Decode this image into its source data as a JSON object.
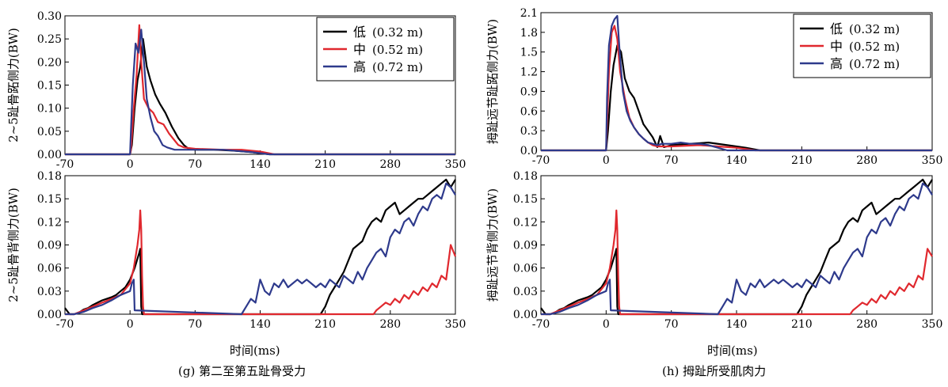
{
  "figure": {
    "xlabel": "时间(ms)",
    "captions": [
      "(g) 第二至第五趾骨受力",
      "(h) 拇趾所受肌肉力"
    ]
  },
  "legend": {
    "entries": [
      {
        "label": "低",
        "value": "(0.32 m)",
        "color": "#000000"
      },
      {
        "label": "中",
        "value": "(0.52 m)",
        "color": "#e0282e"
      },
      {
        "label": "高",
        "value": "(0.72 m)",
        "color": "#2e3a8c"
      }
    ]
  },
  "chart_data": [
    {
      "type": "line",
      "ylabel": "2~5趾骨跖侧力(BW)",
      "xlim": [
        -70,
        350
      ],
      "ylim": [
        0,
        0.3
      ],
      "xticks": [
        "-70",
        "0",
        "70",
        "140",
        "210",
        "280",
        "350"
      ],
      "yticks": [
        "0.00",
        "0.05",
        "0.10",
        "0.15",
        "0.20",
        "0.25",
        "0.30"
      ],
      "legend": true,
      "series": [
        {
          "name": "低 (0.32 m)",
          "color": "#000000",
          "x": [
            -70,
            0,
            2,
            5,
            8,
            11,
            14,
            18,
            22,
            27,
            32,
            38,
            45,
            52,
            58,
            63,
            70,
            90,
            110,
            130,
            150,
            200,
            350
          ],
          "y": [
            0,
            0,
            0.02,
            0.1,
            0.16,
            0.19,
            0.25,
            0.19,
            0.16,
            0.13,
            0.11,
            0.09,
            0.06,
            0.035,
            0.02,
            0.012,
            0.01,
            0.01,
            0.008,
            0.005,
            0,
            0,
            0
          ]
        },
        {
          "name": "中 (0.52 m)",
          "color": "#e0282e",
          "x": [
            -70,
            0,
            1,
            4,
            7,
            10,
            12,
            15,
            20,
            25,
            30,
            36,
            42,
            48,
            52,
            58,
            70,
            100,
            120,
            140,
            155,
            350
          ],
          "y": [
            0,
            0,
            0.01,
            0.1,
            0.17,
            0.28,
            0.2,
            0.12,
            0.1,
            0.09,
            0.07,
            0.065,
            0.045,
            0.03,
            0.02,
            0.015,
            0.012,
            0.01,
            0.01,
            0.006,
            0,
            0
          ]
        },
        {
          "name": "高 (0.72 m)",
          "color": "#2e3a8c",
          "x": [
            -70,
            0,
            1,
            3,
            6,
            9,
            12,
            15,
            18,
            22,
            26,
            30,
            35,
            40,
            48,
            55,
            60,
            70,
            100,
            130,
            150,
            350
          ],
          "y": [
            0,
            0,
            0.05,
            0.15,
            0.24,
            0.22,
            0.27,
            0.2,
            0.12,
            0.08,
            0.05,
            0.04,
            0.02,
            0.015,
            0.01,
            0.01,
            0.01,
            0.01,
            0.01,
            0.005,
            0,
            0
          ]
        }
      ]
    },
    {
      "type": "line",
      "ylabel": "拇趾远节趾跖侧力(BW)",
      "xlim": [
        -70,
        350
      ],
      "ylim": [
        0,
        2.1
      ],
      "xticks": [
        "-70",
        "0",
        "70",
        "140",
        "210",
        "280",
        "350"
      ],
      "yticks": [
        "0.0",
        "0.3",
        "0.6",
        "0.9",
        "1.2",
        "1.5",
        "1.8",
        "2.1"
      ],
      "legend": true,
      "series": [
        {
          "name": "低 (0.32 m)",
          "color": "#000000",
          "x": [
            -70,
            0,
            2,
            5,
            8,
            12,
            16,
            20,
            25,
            30,
            35,
            40,
            45,
            50,
            55,
            58,
            62,
            70,
            90,
            110,
            130,
            150,
            165,
            350
          ],
          "y": [
            0,
            0,
            0.3,
            0.9,
            1.3,
            1.6,
            1.5,
            1.1,
            0.9,
            0.8,
            0.6,
            0.4,
            0.3,
            0.2,
            0.05,
            0.22,
            0.05,
            0.08,
            0.1,
            0.12,
            0.08,
            0.04,
            0,
            0
          ]
        },
        {
          "name": "中 (0.52 m)",
          "color": "#e0282e",
          "x": [
            -70,
            0,
            1,
            3,
            6,
            9,
            12,
            15,
            20,
            25,
            30,
            35,
            40,
            45,
            50,
            55,
            70,
            100,
            120,
            140,
            160,
            350
          ],
          "y": [
            0,
            0,
            0.4,
            1.2,
            1.8,
            1.9,
            1.7,
            1.2,
            0.8,
            0.5,
            0.35,
            0.25,
            0.18,
            0.12,
            0.08,
            0.06,
            0.06,
            0.08,
            0.06,
            0.04,
            0,
            0
          ]
        },
        {
          "name": "高 (0.72 m)",
          "color": "#2e3a8c",
          "x": [
            -70,
            0,
            1,
            3,
            6,
            9,
            12,
            15,
            18,
            22,
            26,
            30,
            35,
            40,
            45,
            50,
            55,
            60,
            70,
            80,
            90,
            100,
            110,
            120,
            130,
            350
          ],
          "y": [
            0,
            0,
            0.8,
            1.6,
            1.9,
            2.0,
            2.05,
            1.4,
            0.9,
            0.6,
            0.45,
            0.35,
            0.25,
            0.18,
            0.12,
            0.1,
            0.08,
            0.1,
            0.1,
            0.12,
            0.1,
            0.1,
            0.08,
            0.04,
            0,
            0
          ]
        }
      ]
    },
    {
      "type": "line",
      "ylabel": "2~5趾骨背侧力(BW)",
      "xlim": [
        -70,
        350
      ],
      "ylim": [
        0,
        0.18
      ],
      "xticks": [
        "-70",
        "0",
        "70",
        "140",
        "210",
        "280",
        "350"
      ],
      "yticks": [
        "0.00",
        "0.03",
        "0.06",
        "0.09",
        "0.12",
        "0.15",
        "0.18"
      ],
      "legend": false,
      "series": [
        {
          "name": "低 (0.32 m)",
          "color": "#000000",
          "x": [
            -70,
            -65,
            -60,
            -55,
            -50,
            -45,
            -40,
            -35,
            -30,
            -25,
            -20,
            -15,
            -10,
            -5,
            0,
            5,
            10,
            11,
            12,
            13,
            205,
            210,
            215,
            220,
            225,
            230,
            235,
            240,
            245,
            250,
            255,
            260,
            265,
            270,
            275,
            280,
            285,
            290,
            295,
            300,
            305,
            310,
            315,
            320,
            325,
            330,
            335,
            340,
            345,
            350
          ],
          "y": [
            0.008,
            0.0,
            0.0,
            0.002,
            0.006,
            0.008,
            0.012,
            0.015,
            0.018,
            0.02,
            0.022,
            0.025,
            0.03,
            0.035,
            0.045,
            0.06,
            0.08,
            0.085,
            0.01,
            0,
            0,
            0.01,
            0.025,
            0.035,
            0.045,
            0.055,
            0.07,
            0.085,
            0.09,
            0.095,
            0.11,
            0.12,
            0.125,
            0.12,
            0.135,
            0.14,
            0.145,
            0.13,
            0.135,
            0.14,
            0.145,
            0.15,
            0.15,
            0.155,
            0.16,
            0.165,
            0.17,
            0.175,
            0.165,
            0.175
          ]
        },
        {
          "name": "中 (0.52 m)",
          "color": "#e0282e",
          "x": [
            -70,
            -60,
            -50,
            -40,
            -30,
            -20,
            -10,
            0,
            4,
            8,
            10,
            11,
            12,
            13,
            14,
            15,
            262,
            265,
            270,
            275,
            280,
            285,
            290,
            295,
            300,
            305,
            310,
            315,
            320,
            325,
            330,
            335,
            340,
            345,
            350
          ],
          "y": [
            0.0,
            0.0,
            0.005,
            0.01,
            0.015,
            0.02,
            0.025,
            0.04,
            0.06,
            0.09,
            0.11,
            0.135,
            0.11,
            0.05,
            0.01,
            0,
            0,
            0.005,
            0.01,
            0.015,
            0.012,
            0.02,
            0.015,
            0.025,
            0.02,
            0.03,
            0.025,
            0.035,
            0.03,
            0.04,
            0.035,
            0.05,
            0.045,
            0.09,
            0.075
          ]
        },
        {
          "name": "高 (0.72 m)",
          "color": "#2e3a8c",
          "x": [
            -70,
            -60,
            -50,
            -40,
            -30,
            -20,
            -10,
            0,
            2,
            4,
            5,
            120,
            125,
            130,
            135,
            140,
            145,
            150,
            155,
            160,
            165,
            170,
            175,
            180,
            185,
            190,
            195,
            200,
            205,
            210,
            215,
            220,
            225,
            230,
            235,
            240,
            245,
            250,
            255,
            260,
            265,
            270,
            275,
            280,
            285,
            290,
            295,
            300,
            305,
            310,
            315,
            320,
            325,
            330,
            335,
            340,
            345,
            350
          ],
          "y": [
            0.0,
            0.0,
            0.003,
            0.008,
            0.012,
            0.018,
            0.025,
            0.03,
            0.04,
            0.045,
            0.005,
            0,
            0.01,
            0.02,
            0.015,
            0.045,
            0.03,
            0.025,
            0.04,
            0.035,
            0.045,
            0.035,
            0.04,
            0.045,
            0.04,
            0.045,
            0.04,
            0.035,
            0.04,
            0.035,
            0.045,
            0.04,
            0.035,
            0.05,
            0.045,
            0.04,
            0.055,
            0.045,
            0.06,
            0.07,
            0.08,
            0.085,
            0.075,
            0.1,
            0.11,
            0.105,
            0.12,
            0.125,
            0.115,
            0.13,
            0.14,
            0.135,
            0.15,
            0.155,
            0.15,
            0.17,
            0.165,
            0.155
          ]
        }
      ]
    },
    {
      "type": "line",
      "ylabel": "拇趾远节背侧力(BW)",
      "xlim": [
        -70,
        350
      ],
      "ylim": [
        0,
        0.18
      ],
      "xticks": [
        "-70",
        "0",
        "70",
        "140",
        "210",
        "280",
        "350"
      ],
      "yticks": [
        "0.00",
        "0.03",
        "0.06",
        "0.09",
        "0.12",
        "0.15",
        "0.18"
      ],
      "legend": false,
      "series": [
        {
          "name": "低 (0.32 m)",
          "color": "#000000",
          "x": [
            -70,
            -65,
            -60,
            -55,
            -50,
            -45,
            -40,
            -35,
            -30,
            -25,
            -20,
            -15,
            -10,
            -5,
            0,
            5,
            10,
            11,
            12,
            13,
            205,
            210,
            215,
            220,
            225,
            230,
            235,
            240,
            245,
            250,
            255,
            260,
            265,
            270,
            275,
            280,
            285,
            290,
            295,
            300,
            305,
            310,
            315,
            320,
            325,
            330,
            335,
            340,
            345,
            350
          ],
          "y": [
            0.008,
            0.0,
            0.0,
            0.002,
            0.006,
            0.008,
            0.012,
            0.015,
            0.018,
            0.02,
            0.022,
            0.025,
            0.03,
            0.035,
            0.045,
            0.06,
            0.08,
            0.085,
            0.01,
            0,
            0,
            0.01,
            0.025,
            0.035,
            0.045,
            0.055,
            0.07,
            0.085,
            0.09,
            0.095,
            0.11,
            0.12,
            0.125,
            0.12,
            0.135,
            0.14,
            0.145,
            0.13,
            0.135,
            0.14,
            0.145,
            0.15,
            0.15,
            0.155,
            0.16,
            0.165,
            0.17,
            0.175,
            0.165,
            0.175
          ]
        },
        {
          "name": "中 (0.52 m)",
          "color": "#e0282e",
          "x": [
            -70,
            -60,
            -50,
            -40,
            -30,
            -20,
            -10,
            0,
            4,
            8,
            10,
            11,
            12,
            13,
            14,
            15,
            262,
            265,
            270,
            275,
            280,
            285,
            290,
            295,
            300,
            305,
            310,
            315,
            320,
            325,
            330,
            335,
            340,
            345,
            350
          ],
          "y": [
            0.0,
            0.0,
            0.005,
            0.01,
            0.015,
            0.02,
            0.025,
            0.04,
            0.06,
            0.09,
            0.11,
            0.135,
            0.11,
            0.05,
            0.01,
            0,
            0,
            0.005,
            0.01,
            0.015,
            0.012,
            0.02,
            0.015,
            0.025,
            0.02,
            0.03,
            0.025,
            0.035,
            0.03,
            0.04,
            0.035,
            0.05,
            0.045,
            0.085,
            0.075
          ]
        },
        {
          "name": "高 (0.72 m)",
          "color": "#2e3a8c",
          "x": [
            -70,
            -60,
            -50,
            -40,
            -30,
            -20,
            -10,
            0,
            2,
            4,
            5,
            120,
            125,
            130,
            135,
            140,
            145,
            150,
            155,
            160,
            165,
            170,
            175,
            180,
            185,
            190,
            195,
            200,
            205,
            210,
            215,
            220,
            225,
            230,
            235,
            240,
            245,
            250,
            255,
            260,
            265,
            270,
            275,
            280,
            285,
            290,
            295,
            300,
            305,
            310,
            315,
            320,
            325,
            330,
            335,
            340,
            345,
            350
          ],
          "y": [
            0.0,
            0.0,
            0.003,
            0.008,
            0.012,
            0.018,
            0.025,
            0.03,
            0.04,
            0.045,
            0.005,
            0,
            0.01,
            0.02,
            0.015,
            0.045,
            0.03,
            0.025,
            0.04,
            0.035,
            0.045,
            0.035,
            0.04,
            0.045,
            0.04,
            0.045,
            0.04,
            0.035,
            0.04,
            0.035,
            0.045,
            0.04,
            0.035,
            0.05,
            0.045,
            0.04,
            0.055,
            0.045,
            0.06,
            0.07,
            0.08,
            0.085,
            0.075,
            0.1,
            0.11,
            0.105,
            0.12,
            0.125,
            0.115,
            0.13,
            0.14,
            0.135,
            0.15,
            0.155,
            0.15,
            0.17,
            0.165,
            0.155
          ]
        }
      ]
    }
  ]
}
